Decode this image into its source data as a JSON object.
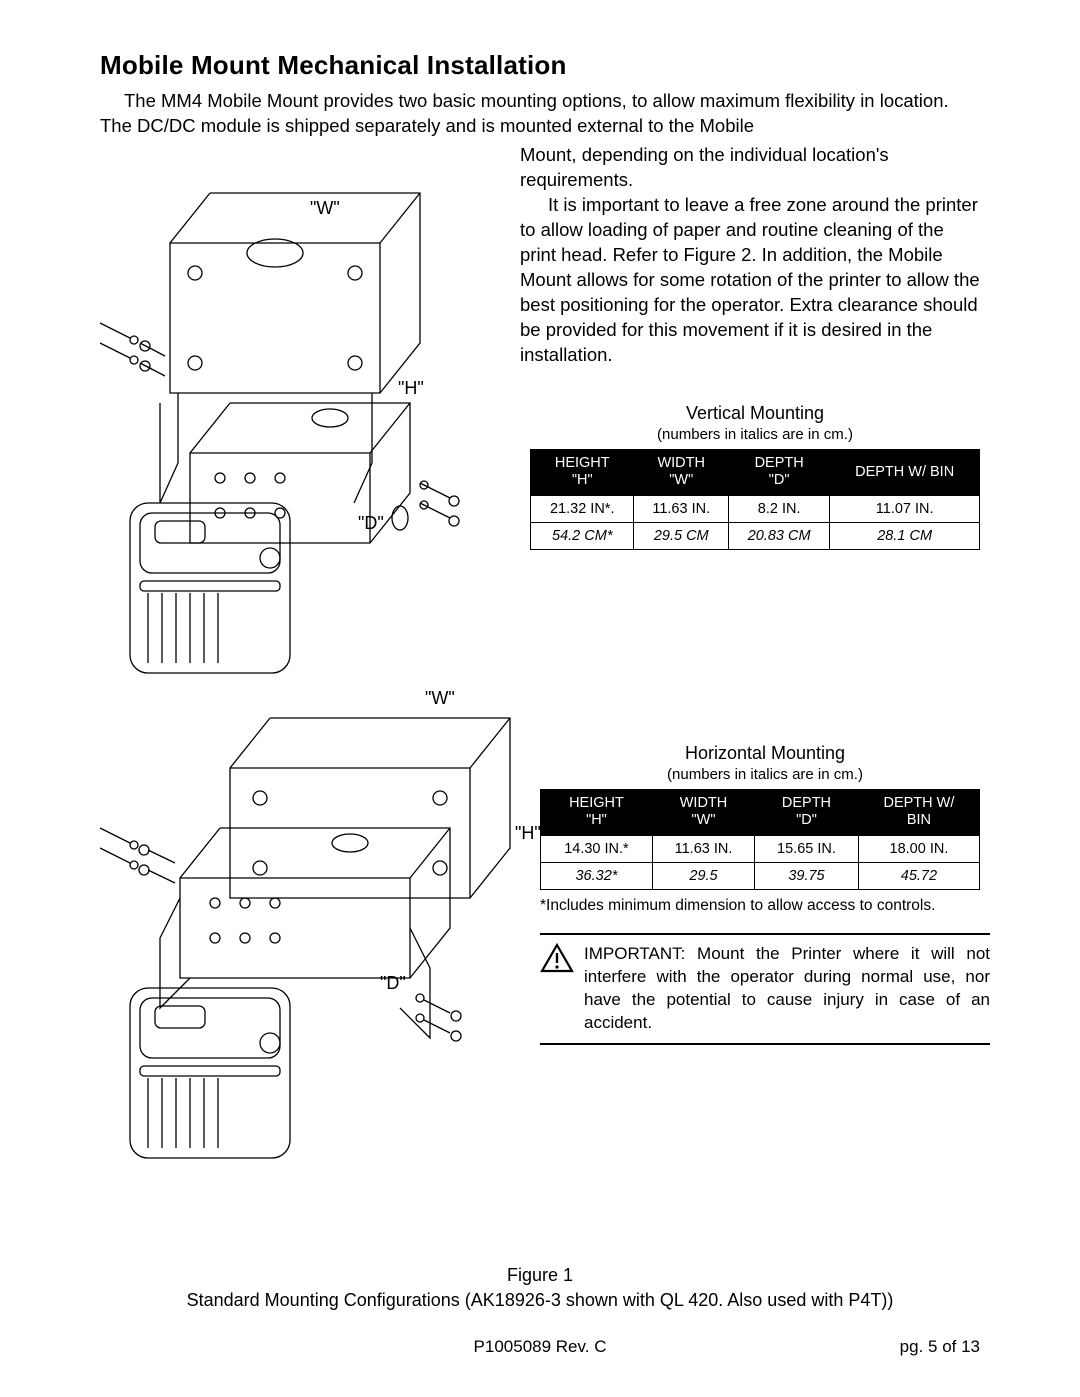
{
  "title": "Mobile Mount Mechanical Installation",
  "intro_line1": "The MM4 Mobile Mount provides two basic mounting options, to allow maximum flexibility in location.  The DC/DC module is shipped separately and is mounted external to the Mobile",
  "right_text1": "Mount, depending on the individual location's requirements.",
  "right_text2": "It is important to leave a free zone around the printer to allow loading of paper and routine cleaning of the print head.  Refer to Figure 2.  In addition, the Mobile Mount allows for some rotation of the printer to allow the best positioning for the operator.  Extra clearance should be provided for this movement if it is desired in the installation.",
  "diagram_labels": {
    "W": "\"W\"",
    "H": "\"H\"",
    "D": "\"D\""
  },
  "table1": {
    "title": "Vertical Mounting",
    "subtitle": "(numbers in italics are in cm.)",
    "headers": [
      "HEIGHT\n\"H\"",
      "WIDTH\n\"W\"",
      "DEPTH\n\"D\"",
      "DEPTH W/ BIN"
    ],
    "row_in": [
      "21.32 IN*.",
      "11.63 IN.",
      "8.2 IN.",
      "11.07 IN."
    ],
    "row_cm": [
      "54.2 CM*",
      "29.5 CM",
      "20.83 CM",
      "28.1 CM"
    ]
  },
  "table2": {
    "title": "Horizontal Mounting",
    "subtitle": "(numbers in italics are in cm.)",
    "headers": [
      "HEIGHT\n\"H\"",
      "WIDTH\n\"W\"",
      "DEPTH\n\"D\"",
      "DEPTH W/\nBIN"
    ],
    "row_in": [
      "14.30 IN.*",
      "11.63 IN.",
      "15.65 IN.",
      "18.00 IN."
    ],
    "row_cm": [
      "36.32*",
      "29.5",
      "39.75",
      "45.72"
    ],
    "note": "*Includes minimum dimension to allow access to controls."
  },
  "important_text": "IMPORTANT: Mount the Printer where it will not interfere with the operator during normal use, nor have the potential to cause injury in case of an accident.",
  "figure_caption_line1": "Figure 1",
  "figure_caption_line2": "Standard Mounting Configurations (AK18926-3 shown with QL 420. Also used with P4T))",
  "footer_center": "P1005089 Rev. C",
  "footer_right": "pg.  5 of 13"
}
